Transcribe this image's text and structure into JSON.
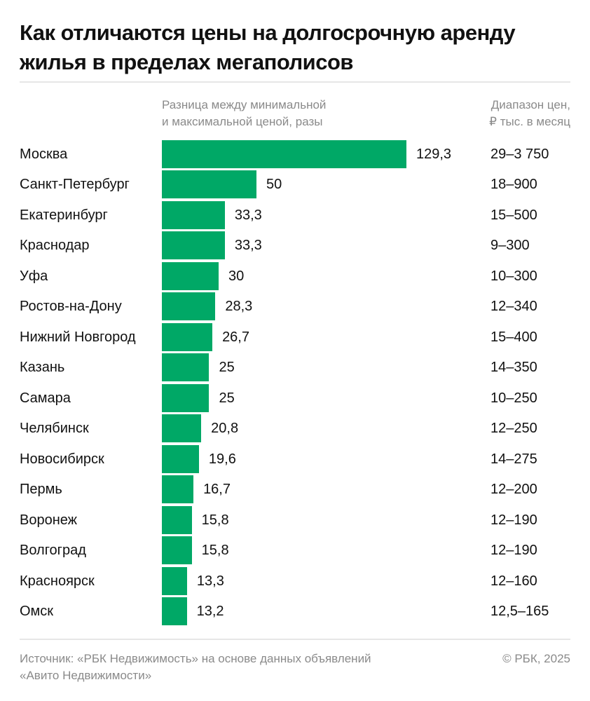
{
  "title": "Как отличаются цены на долгосрочную аренду жилья в пределах мегаполисов",
  "header": {
    "ratio_line1": "Разница между минимальной",
    "ratio_line2": "и максимальной ценой, разы",
    "range_line1": "Диапазон цен,",
    "range_line2": "₽ тыс. в месяц"
  },
  "footer": {
    "source_line1": "Источник: «РБК Недвижимость» на основе данных объявлений",
    "source_line2": "«Авито Недвижимости»",
    "copyright": "© РБК, 2025"
  },
  "colors": {
    "bar": "#00a866"
  },
  "chart_data": {
    "type": "bar",
    "orientation": "horizontal",
    "categories": [
      "Москва",
      "Санкт-Петербург",
      "Екатеринбург",
      "Краснодар",
      "Уфа",
      "Ростов-на-Дону",
      "Нижний Новгород",
      "Казань",
      "Самара",
      "Челябинск",
      "Новосибирск",
      "Пермь",
      "Воронеж",
      "Волгоград",
      "Красноярск",
      "Омск"
    ],
    "values": [
      129.3,
      50,
      33.3,
      33.3,
      30,
      28.3,
      26.7,
      25,
      25,
      20.8,
      19.6,
      16.7,
      15.8,
      15.8,
      13.3,
      13.2
    ],
    "value_labels": [
      "129,3",
      "50",
      "33,3",
      "33,3",
      "30",
      "28,3",
      "26,7",
      "25",
      "25",
      "20,8",
      "19,6",
      "16,7",
      "15,8",
      "15,8",
      "13,3",
      "13,2"
    ],
    "price_ranges": [
      "29–3 750",
      "18–900",
      "15–500",
      "9–300",
      "10–300",
      "12–340",
      "15–400",
      "14–350",
      "10–250",
      "12–250",
      "14–275",
      "12–200",
      "12–190",
      "12–190",
      "12–160",
      "12,5–165"
    ],
    "xlabel": "Разница между минимальной и максимальной ценой, разы",
    "grid": false
  }
}
